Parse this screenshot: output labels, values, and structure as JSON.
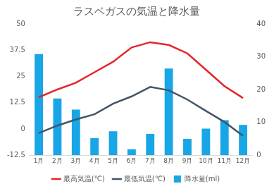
{
  "chart_data": {
    "type": "bar",
    "title": "ラスベガスの気温と降水量",
    "categories": [
      "1月",
      "2月",
      "3月",
      "4月",
      "5月",
      "6月",
      "7月",
      "8月",
      "9月",
      "10月",
      "11月",
      "12月"
    ],
    "series": [
      {
        "name": "最高気温(℃)",
        "type": "line",
        "color": "#e3262b",
        "values": [
          15.1,
          18.8,
          22,
          27,
          32,
          38.8,
          41.3,
          40,
          36,
          28.2,
          20.4,
          14.7
        ]
      },
      {
        "name": "最低気温(℃)",
        "type": "line",
        "color": "#44546a",
        "values": [
          -2,
          1.6,
          4.5,
          7,
          12,
          15.5,
          20,
          18.4,
          14,
          8.6,
          3.3,
          -3.3
        ]
      },
      {
        "name": "降水量(ml)",
        "type": "bar",
        "color": "#18a6e6",
        "axis": "y2",
        "values": [
          30.8,
          17.3,
          13.9,
          5.2,
          7.3,
          1.8,
          6.5,
          26.4,
          5.0,
          8.1,
          10.7,
          9.2
        ]
      }
    ],
    "ylim": [
      -12.5,
      50
    ],
    "yticks": [
      -12.5,
      0,
      12.5,
      25,
      37.5,
      50
    ],
    "y2lim": [
      0,
      40
    ],
    "y2ticks": [
      0,
      10,
      20,
      30,
      40
    ],
    "grid": false,
    "legend": "bottom"
  }
}
